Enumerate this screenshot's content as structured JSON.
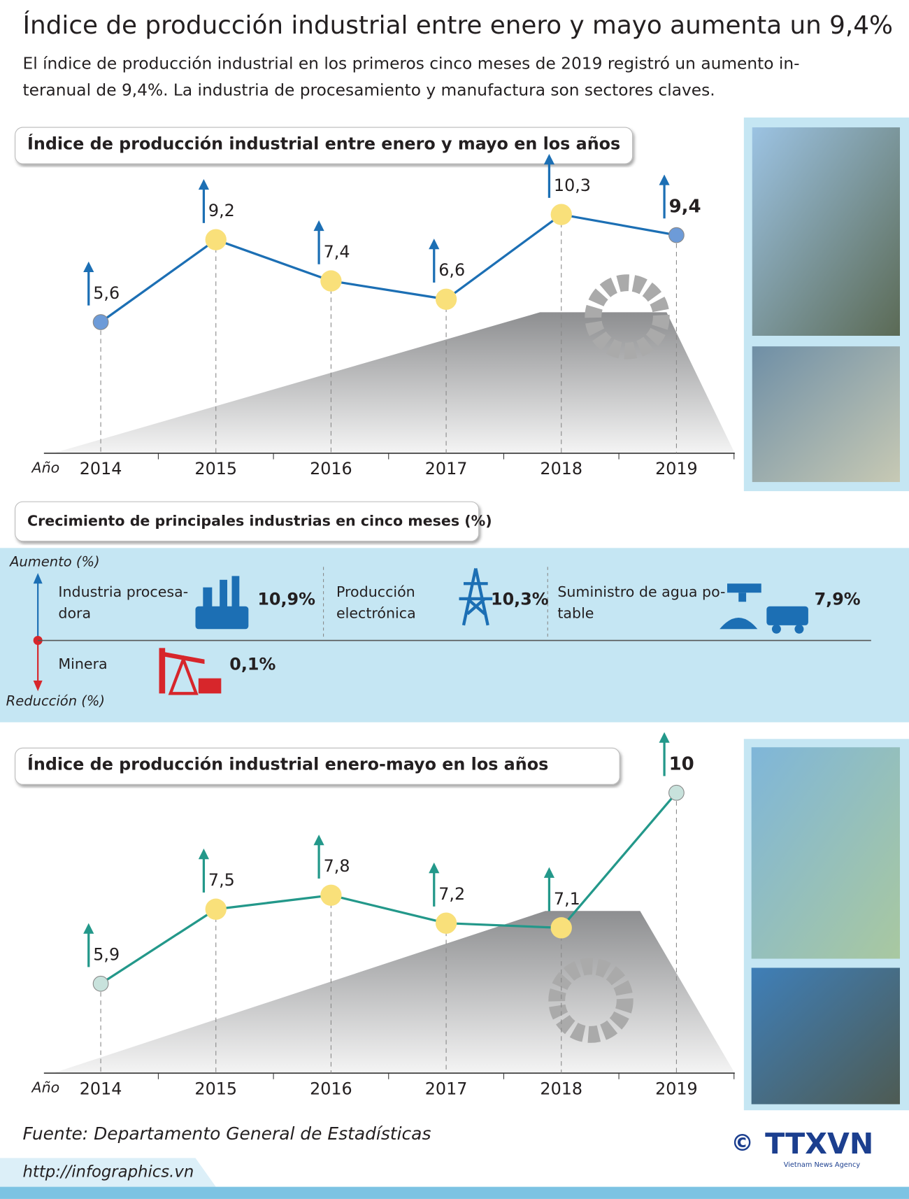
{
  "title": "Índice de producción industrial entre enero y mayo aumenta un 9,4%",
  "subtitle": [
    "El índice de producción industrial en los primeros cinco meses de 2019 registró un aumento in-",
    "teranual de 9,4%. La industria de procesamiento y manufactura son sectores claves."
  ],
  "chart_data": [
    {
      "type": "line",
      "title": "Índice de producción industrial entre enero y mayo en los años",
      "x_label": "Año",
      "categories": [
        "2014",
        "2015",
        "2016",
        "2017",
        "2018",
        "2019"
      ],
      "series": [
        {
          "color": "#1c6fb4",
          "marker_color": "#f9e07a",
          "end_marker_color": "#6d9bd8",
          "values": [
            5.6,
            9.2,
            7.4,
            6.6,
            10.3,
            9.4
          ],
          "value_labels": [
            "5,6",
            "9,2",
            "7,4",
            "6,6",
            "10,3",
            "9,4"
          ]
        }
      ]
    },
    {
      "type": "line",
      "title": "Índice de producción industrial enero-mayo en los años",
      "x_label": "Año",
      "categories": [
        "2014",
        "2015",
        "2016",
        "2017",
        "2018",
        "2019"
      ],
      "series": [
        {
          "color": "#23988a",
          "marker_color": "#f9e07a",
          "end_marker_color": "#c8e2dc",
          "values": [
            5.9,
            7.5,
            7.8,
            7.2,
            7.1,
            10
          ],
          "value_labels": [
            "5,9",
            "7,5",
            "7,8",
            "7,2",
            "7,1",
            "10"
          ]
        }
      ]
    }
  ],
  "industries": {
    "title": "Crecimiento de principales industrias en cinco meses (%)",
    "increase_label": "Aumento (%)",
    "decrease_label": "Reducción (%)",
    "increase": [
      {
        "name": [
          "Industria procesa-",
          "dora"
        ],
        "value": "10,9%"
      },
      {
        "name": [
          "Producción",
          "electrónica"
        ],
        "value": "10,3%"
      },
      {
        "name": [
          "Suministro de agua po-",
          "table"
        ],
        "value": "7,9%"
      }
    ],
    "decrease": [
      {
        "name": [
          "Minera"
        ],
        "value": "0,1%"
      }
    ]
  },
  "source": "Fuente: Departamento General de Estadísticas",
  "copyright": "©",
  "logo": {
    "name": "TTXVN",
    "subtitle": "Vietnam News Agency"
  },
  "url": "http://infographics.vn"
}
